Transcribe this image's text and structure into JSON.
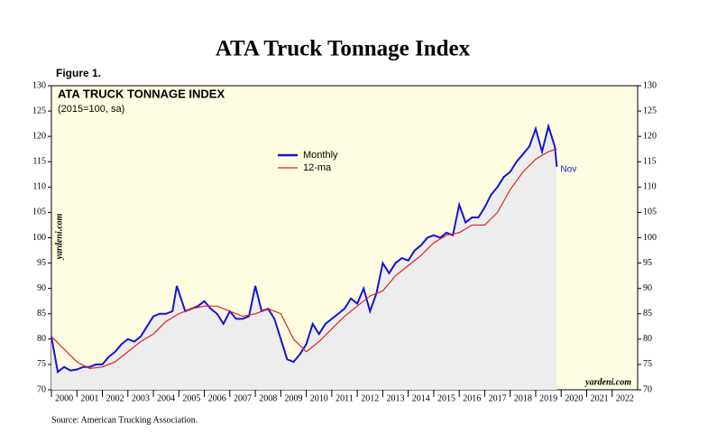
{
  "chart_data": {
    "type": "line",
    "title": "ATA Truck Tonnage Index",
    "figure_label": "Figure 1.",
    "inner_title": "ATA TRUCK TONNAGE INDEX",
    "subtitle": "(2015=100, sa)",
    "watermark": "yardeni.com",
    "end_label": "Nov",
    "source": "Source: American Trucking Association.",
    "xlim": [
      2000,
      2023
    ],
    "xticks": [
      2000,
      2001,
      2002,
      2003,
      2004,
      2005,
      2006,
      2007,
      2008,
      2009,
      2010,
      2011,
      2012,
      2013,
      2014,
      2015,
      2016,
      2017,
      2018,
      2019,
      2020,
      2021,
      2022
    ],
    "ylim": [
      70,
      130
    ],
    "yticks": [
      70,
      75,
      80,
      85,
      90,
      95,
      100,
      105,
      110,
      115,
      120,
      125,
      130
    ],
    "series": [
      {
        "name": "Monthly",
        "color": "#1414d2",
        "x": [
          2000,
          2000.25,
          2000.5,
          2000.75,
          2001,
          2001.25,
          2001.5,
          2001.75,
          2002,
          2002.25,
          2002.5,
          2002.75,
          2003,
          2003.25,
          2003.5,
          2003.75,
          2004,
          2004.25,
          2004.5,
          2004.75,
          2004.92,
          2005.25,
          2005.5,
          2005.75,
          2006,
          2006.25,
          2006.5,
          2006.75,
          2007,
          2007.25,
          2007.5,
          2007.75,
          2008,
          2008.25,
          2008.5,
          2008.75,
          2009,
          2009.25,
          2009.5,
          2009.75,
          2010,
          2010.25,
          2010.5,
          2010.75,
          2011,
          2011.25,
          2011.5,
          2011.75,
          2012,
          2012.25,
          2012.5,
          2012.75,
          2013,
          2013.25,
          2013.5,
          2013.75,
          2014,
          2014.25,
          2014.5,
          2014.75,
          2015,
          2015.25,
          2015.5,
          2015.75,
          2016,
          2016.25,
          2016.5,
          2016.75,
          2017,
          2017.25,
          2017.5,
          2017.75,
          2018,
          2018.25,
          2018.5,
          2018.75,
          2019,
          2019.25,
          2019.5,
          2019.75,
          2019.83
        ],
        "values": [
          80.5,
          73.5,
          74.5,
          73.8,
          74,
          74.5,
          74.5,
          75,
          75,
          76.5,
          77.5,
          79,
          80,
          79.5,
          80.5,
          82.5,
          84.5,
          85,
          85,
          85.5,
          90.5,
          85.5,
          86,
          86.5,
          87.5,
          86,
          85,
          83,
          85.5,
          84,
          84,
          84.5,
          90.5,
          85.5,
          86,
          84,
          80,
          76,
          75.5,
          77,
          79,
          83,
          81,
          83,
          84,
          85,
          86,
          88,
          87,
          90,
          85.5,
          89,
          95,
          93,
          95,
          96,
          95.5,
          97.5,
          98.5,
          100,
          100.5,
          100,
          101,
          100.5,
          106.5,
          103,
          104,
          104,
          106,
          108.5,
          110,
          112,
          113,
          115,
          116.5,
          118,
          121.5,
          117,
          122,
          118,
          114
        ]
      },
      {
        "name": "12-ma",
        "color": "#e32020",
        "x": [
          2000,
          2000.5,
          2001,
          2001.5,
          2002,
          2002.5,
          2003,
          2003.5,
          2004,
          2004.5,
          2005,
          2005.5,
          2006,
          2006.5,
          2007,
          2007.5,
          2008,
          2008.5,
          2009,
          2009.5,
          2010,
          2010.5,
          2011,
          2011.5,
          2012,
          2012.5,
          2013,
          2013.5,
          2014,
          2014.5,
          2015,
          2015.5,
          2016,
          2016.5,
          2017,
          2017.5,
          2018,
          2018.5,
          2019,
          2019.5,
          2019.83
        ],
        "values": [
          80.5,
          78,
          75.5,
          74.2,
          74.5,
          75.5,
          77.5,
          79.5,
          81,
          83.5,
          85,
          86,
          86.5,
          86.5,
          85.5,
          84.5,
          85,
          86,
          85,
          80,
          77.5,
          79.5,
          82,
          84.5,
          86.5,
          88.5,
          89.5,
          92.5,
          94.5,
          96.5,
          99,
          100.5,
          101,
          102.5,
          102.5,
          105,
          109.5,
          113,
          115.5,
          117,
          117.5
        ]
      }
    ]
  }
}
